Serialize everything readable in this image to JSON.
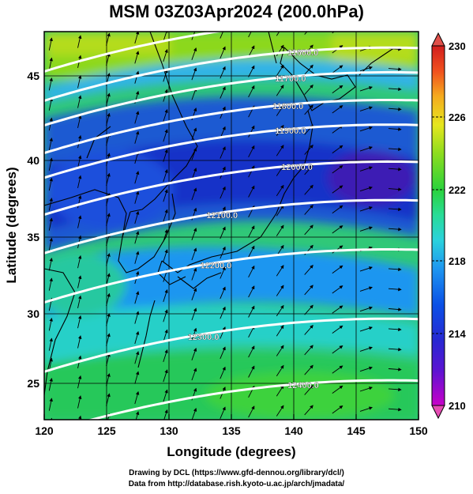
{
  "title": "MSM 03Z03Apr2024 (200.0hPa)",
  "xlabel": "Longitude (degrees)",
  "ylabel": "Latitude  (degrees)",
  "footer": {
    "line1": "Drawing by DCL (https://www.gfd-dennou.org/library/dcl/)",
    "line2": "Data from http://database.rish.kyoto-u.ac.jp/arch/jmadata/"
  },
  "chart_data": {
    "type": "heatmap",
    "xlim": [
      120,
      150
    ],
    "ylim": [
      22.4,
      47.6
    ],
    "x_ticks": [
      "120",
      "125",
      "130",
      "135",
      "140",
      "145",
      "150"
    ],
    "y_ticks": [
      "25",
      "30",
      "35",
      "40",
      "45"
    ],
    "colorbar": {
      "min": 210,
      "max": 230,
      "tick_labels": [
        "210",
        "214",
        "218",
        "222",
        "226",
        "230"
      ],
      "palette": [
        "#c800c8",
        "#2828d2",
        "#0a50e6",
        "#1e96f0",
        "#2ad2dc",
        "#28dc96",
        "#2ad23c",
        "#8cdc1e",
        "#e6e61e",
        "#f5aa1e",
        "#f0501e",
        "#d21e1e"
      ]
    },
    "contours": [
      {
        "label": "11500.0",
        "lat_at_140": 48.2
      },
      {
        "label": "11600.0",
        "lat_at_140": 46.3
      },
      {
        "label": "11700.0",
        "lat_at_140": 44.7
      },
      {
        "label": "11800.0",
        "lat_at_140": 42.9
      },
      {
        "label": "11900.0",
        "lat_at_140": 41.3
      },
      {
        "label": "12000.0",
        "lat_at_140": 38.9
      },
      {
        "label": "12100.0",
        "lat_at_140": 36.4
      },
      {
        "label": "12200.0",
        "lat_at_140": 33.2
      },
      {
        "label": "12300.0",
        "lat_at_140": 28.7
      },
      {
        "label": "12400.0",
        "lat_at_140": 24.7
      }
    ],
    "wind_arrows": "westerly flow, arcing around the low-height trough over Honshu",
    "grid": true
  }
}
